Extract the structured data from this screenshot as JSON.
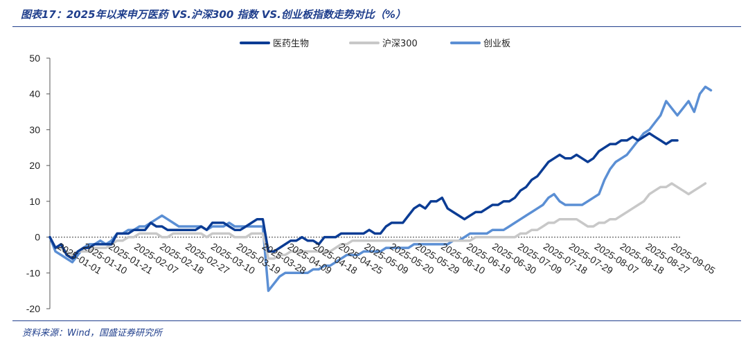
{
  "header": {
    "title": "图表17：2025年以来申万医药 VS.沪深300 指数 VS.创业板指数走势对比（%）"
  },
  "footer": {
    "source": "资料来源：Wind，国盛证券研究所"
  },
  "colors": {
    "pharma": "#0b3c94",
    "hs300": "#c8c8c8",
    "chinext": "#5b8fd4",
    "accent": "#1f3e8c"
  },
  "chart_data": {
    "type": "line",
    "title": "",
    "xlabel": "",
    "ylabel": "",
    "ylim": [
      -20,
      50
    ],
    "yticks": [
      -20,
      -10,
      0,
      10,
      20,
      30,
      40,
      50
    ],
    "legend_position": "top",
    "grid": false,
    "x_tick_labels": [
      "2025-01-01",
      "2025-01-10",
      "2025-01-21",
      "2025-02-07",
      "2025-02-18",
      "2025-02-27",
      "2025-03-10",
      "2025-03-19",
      "2025-03-28",
      "2025-04-09",
      "2025-04-18",
      "2025-04-25",
      "2025-05-09",
      "2025-05-20",
      "2025-05-29",
      "2025-06-10",
      "2025-06-19",
      "2025-06-30",
      "2025-07-09",
      "2025-07-18",
      "2025-07-29",
      "2025-08-07",
      "2025-08-18",
      "2025-08-27",
      "2025-09-05"
    ],
    "series": [
      {
        "name": "医药生物",
        "color": "#0b3c94",
        "values": [
          0,
          -3,
          -2,
          -5,
          -6,
          -4,
          -3,
          -3,
          -2,
          -2,
          -2,
          -2,
          1,
          1,
          1,
          2,
          2,
          2,
          4,
          3,
          3,
          2,
          2,
          2,
          2,
          2,
          2,
          3,
          2,
          4,
          4,
          4,
          3,
          2,
          2,
          3,
          4,
          5,
          5,
          -4,
          -4,
          -3,
          -2,
          -1,
          -1,
          0,
          -1,
          -1,
          -2,
          0,
          0,
          0,
          1,
          1,
          1,
          1,
          1,
          2,
          1,
          1,
          3,
          4,
          4,
          4,
          6,
          8,
          9,
          8,
          10,
          10,
          11,
          8,
          7,
          6,
          5,
          6,
          7,
          7,
          8,
          9,
          9,
          10,
          10,
          11,
          13,
          14,
          16,
          17,
          19,
          21,
          22,
          23,
          22,
          22,
          23,
          22,
          21,
          22,
          24,
          25,
          26,
          26,
          27,
          27,
          28,
          27,
          28,
          29,
          28,
          27,
          26,
          27,
          27
        ]
      },
      {
        "name": "沪深300",
        "color": "#c8c8c8",
        "values": [
          0,
          -3,
          -3,
          -4,
          -5,
          -4,
          -4,
          -4,
          -3,
          -3,
          -3,
          -2,
          -1,
          -1,
          0,
          0,
          1,
          1,
          1,
          1,
          0,
          0,
          1,
          1,
          1,
          1,
          1,
          1,
          0,
          1,
          1,
          1,
          1,
          0,
          0,
          0,
          1,
          1,
          1,
          -6,
          -6,
          -5,
          -5,
          -4,
          -4,
          -4,
          -4,
          -4,
          -4,
          -4,
          -4,
          -3,
          -2,
          -2,
          -1,
          -1,
          -1,
          -1,
          -1,
          -1,
          -1,
          -1,
          -1,
          -1,
          -1,
          -1,
          -1,
          -1,
          -1,
          -1,
          -1,
          -1,
          -1,
          -1,
          -1,
          -1,
          0,
          0,
          0,
          0,
          0,
          0,
          0,
          0,
          1,
          1,
          2,
          2,
          3,
          4,
          4,
          5,
          5,
          5,
          5,
          4,
          3,
          3,
          4,
          4,
          5,
          5,
          6,
          7,
          8,
          9,
          10,
          12,
          13,
          14,
          14,
          15,
          14,
          13,
          12,
          13,
          14,
          15
        ]
      },
      {
        "name": "创业板",
        "color": "#5b8fd4",
        "values": [
          0,
          -4,
          -5,
          -6,
          -7,
          -5,
          -3,
          -2,
          -2,
          -1,
          -2,
          -1,
          1,
          1,
          2,
          2,
          3,
          3,
          4,
          5,
          6,
          5,
          4,
          3,
          3,
          3,
          3,
          3,
          2,
          3,
          3,
          3,
          4,
          3,
          3,
          3,
          3,
          3,
          3,
          -15,
          -13,
          -11,
          -10,
          -10,
          -10,
          -10,
          -10,
          -9,
          -9,
          -8,
          -8,
          -7,
          -6,
          -5,
          -5,
          -5,
          -4,
          -4,
          -4,
          -4,
          -3,
          -3,
          -3,
          -3,
          -3,
          -2,
          -2,
          -2,
          -2,
          -2,
          -2,
          -2,
          -1,
          -1,
          0,
          1,
          1,
          1,
          1,
          2,
          2,
          2,
          3,
          4,
          5,
          6,
          7,
          8,
          9,
          11,
          12,
          10,
          9,
          9,
          9,
          9,
          10,
          11,
          12,
          16,
          19,
          21,
          22,
          23,
          25,
          27,
          29,
          30,
          32,
          34,
          38,
          36,
          34,
          36,
          38,
          35,
          40,
          42,
          41
        ]
      }
    ]
  }
}
